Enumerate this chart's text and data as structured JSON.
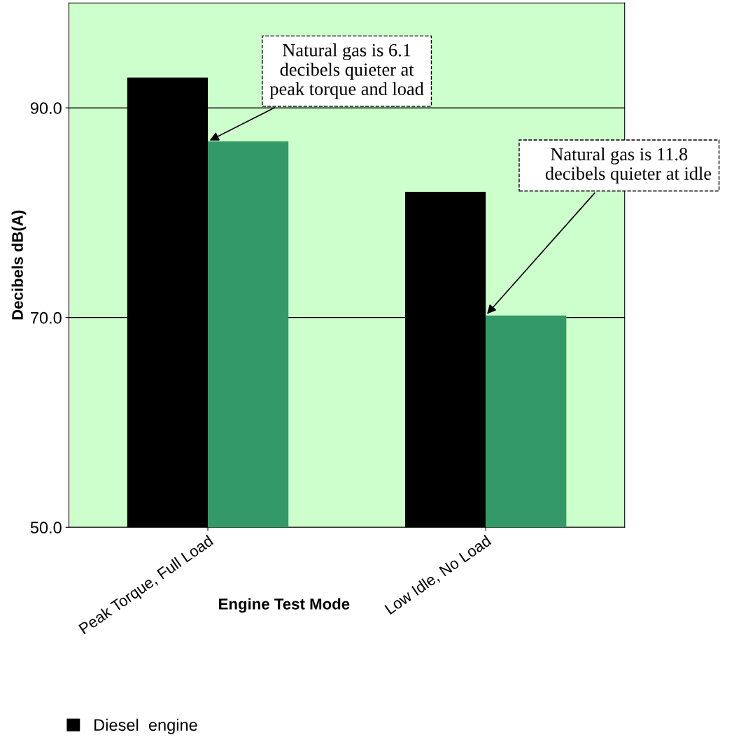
{
  "chart_data": {
    "type": "bar",
    "xlabel": "Engine Test Mode",
    "ylabel": "Decibels dB(A)",
    "categories": [
      "Peak Torque, Full Load",
      "Low Idle, No Load"
    ],
    "series": [
      {
        "name": "Diesel  engine",
        "color": "#000000",
        "values": [
          92.9,
          82.0
        ]
      },
      {
        "color": "#339966",
        "values": [
          86.8,
          70.2
        ]
      }
    ],
    "ylim": [
      50,
      100
    ],
    "yticks": [
      {
        "value": 50,
        "label": "50.0"
      },
      {
        "value": 70,
        "label": "70.0"
      },
      {
        "value": 90,
        "label": "90.0"
      }
    ],
    "grid": "y",
    "legend": "bottom",
    "annotations": [
      {
        "text": "Natural gas is 6.1\ndecibels quieter at\npeak torque and load",
        "x": "Peak Torque, Full Load",
        "y": 86.8
      },
      {
        "text": "Natural gas is 11.8\n    decibels quieter at idle",
        "x": "Low Idle, No Load",
        "y": 70.2
      }
    ]
  }
}
